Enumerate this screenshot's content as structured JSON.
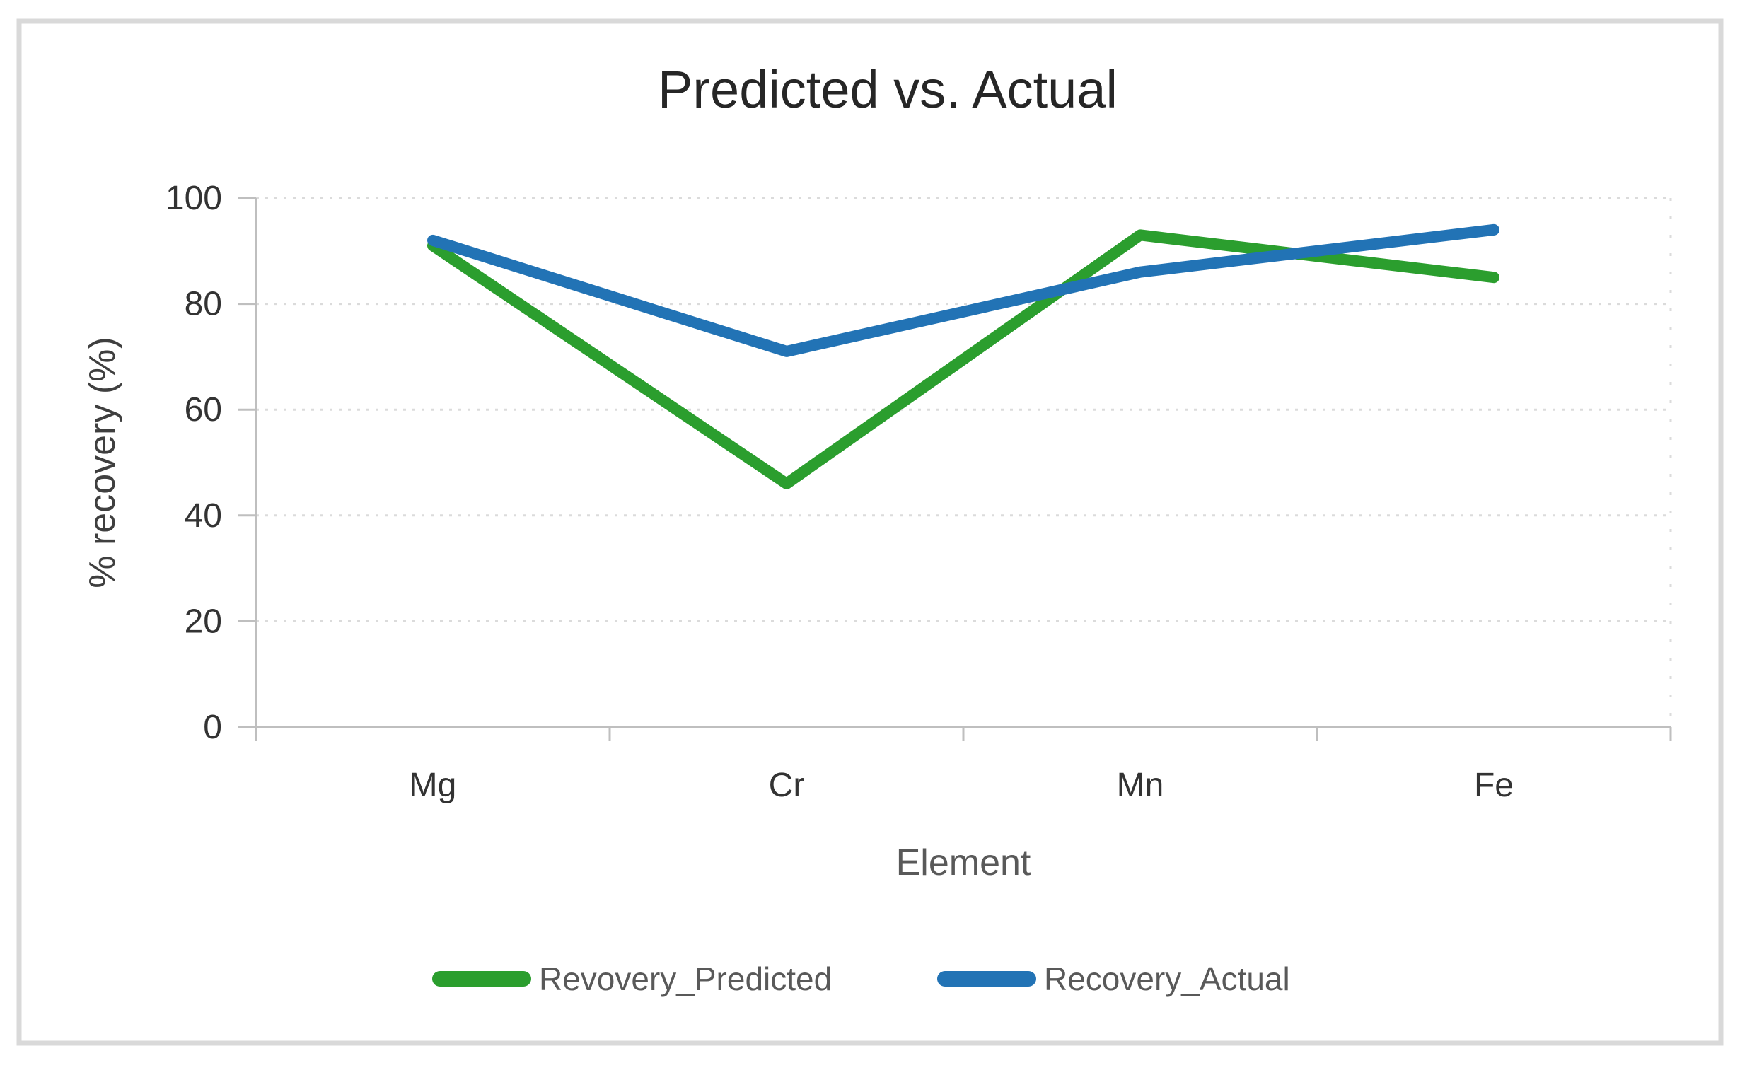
{
  "chart_data": {
    "type": "line",
    "title": "Predicted vs. Actual",
    "xlabel": "Element",
    "ylabel": "% recovery (%)",
    "categories": [
      "Mg",
      "Cr",
      "Mn",
      "Fe"
    ],
    "series": [
      {
        "name": "Revovery_Predicted",
        "color": "#2b9e2e",
        "values": [
          91,
          46,
          93,
          85
        ]
      },
      {
        "name": "Recovery_Actual",
        "color": "#2273b5",
        "values": [
          92,
          71,
          86,
          94
        ]
      }
    ],
    "ylim": [
      0,
      100
    ],
    "yticks": [
      0,
      20,
      40,
      60,
      80,
      100
    ],
    "grid": "horizontal-dotted",
    "legend_position": "bottom"
  },
  "colors": {
    "grid": "#dbdbdb",
    "axis": "#bfbfbf",
    "border": "#d9d9d9",
    "title_text": "#262626",
    "tick_text": "#333333",
    "axis_title_text": "#595959"
  }
}
